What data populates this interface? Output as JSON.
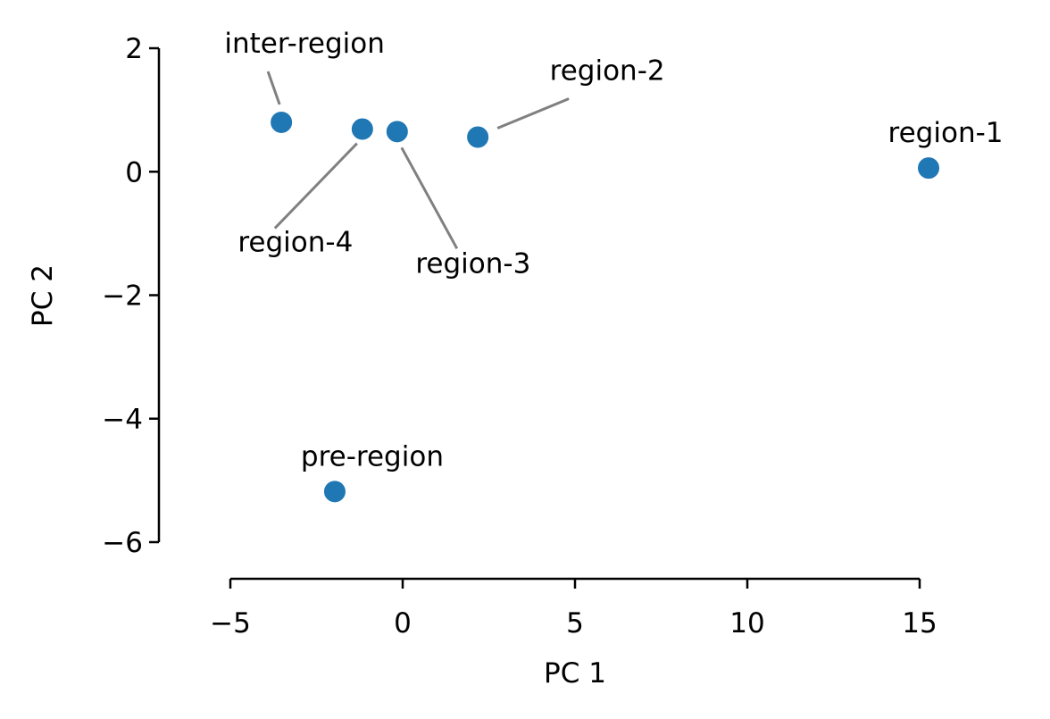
{
  "chart_data": {
    "type": "scatter",
    "x": [
      -3.52,
      -1.17,
      -0.16,
      2.18,
      15.26,
      -1.97
    ],
    "values": [
      0.8,
      0.69,
      0.65,
      0.56,
      0.06,
      -5.18
    ],
    "labels": [
      "inter-region",
      "region-4",
      "region-3",
      "region-2",
      "region-1",
      "pre-region"
    ],
    "color": "#1f77b4",
    "xlabel": "PC 1",
    "ylabel": "PC 2",
    "xlim": [
      -5,
      15
    ],
    "ylim": [
      -6,
      2
    ],
    "xticks": [
      {
        "value": -5,
        "label": "−5"
      },
      0,
      5,
      10,
      15
    ],
    "yticks": [
      {
        "value": -6,
        "label": "−6"
      },
      {
        "value": -4,
        "label": "−4"
      },
      {
        "value": -2,
        "label": "−2"
      },
      0,
      2
    ]
  }
}
